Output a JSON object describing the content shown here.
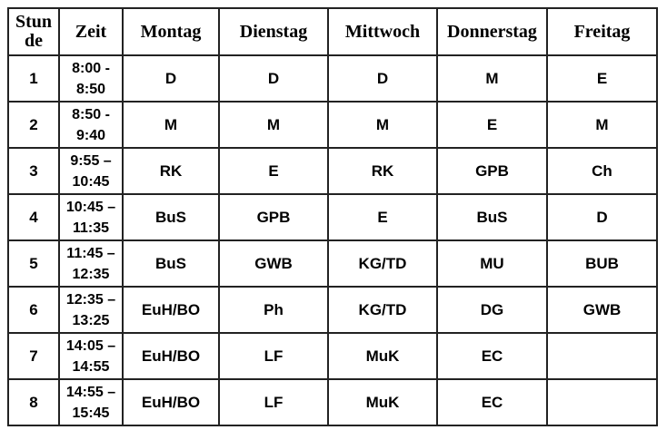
{
  "headers": [
    "Stun de",
    "Zeit",
    "Montag",
    "Dienstag",
    "Mittwoch",
    "Donnerstag",
    "Freitag"
  ],
  "rows": [
    {
      "period": "1",
      "time": "8:00 - 8:50",
      "cells": [
        "D",
        "D",
        "D",
        "M",
        "E"
      ]
    },
    {
      "period": "2",
      "time": "8:50 - 9:40",
      "cells": [
        "M",
        "M",
        "M",
        "E",
        "M"
      ]
    },
    {
      "period": "3",
      "time": "9:55 – 10:45",
      "cells": [
        "RK",
        "E",
        "RK",
        "GPB",
        "Ch"
      ]
    },
    {
      "period": "4",
      "time": "10:45 – 11:35",
      "cells": [
        "BuS",
        "GPB",
        "E",
        "BuS",
        "D"
      ]
    },
    {
      "period": "5",
      "time": "11:45 – 12:35",
      "cells": [
        "BuS",
        "GWB",
        "KG/TD",
        "MU",
        "BUB"
      ]
    },
    {
      "period": "6",
      "time": "12:35 – 13:25",
      "cells": [
        "EuH/BO",
        "Ph",
        "KG/TD",
        "DG",
        "GWB"
      ]
    },
    {
      "period": "7",
      "time": "14:05 – 14:55",
      "cells": [
        "EuH/BO",
        "LF",
        "MuK",
        "EC",
        ""
      ]
    },
    {
      "period": "8",
      "time": "14:55 – 15:45",
      "cells": [
        "EuH/BO",
        "LF",
        "MuK",
        "EC",
        ""
      ]
    }
  ]
}
